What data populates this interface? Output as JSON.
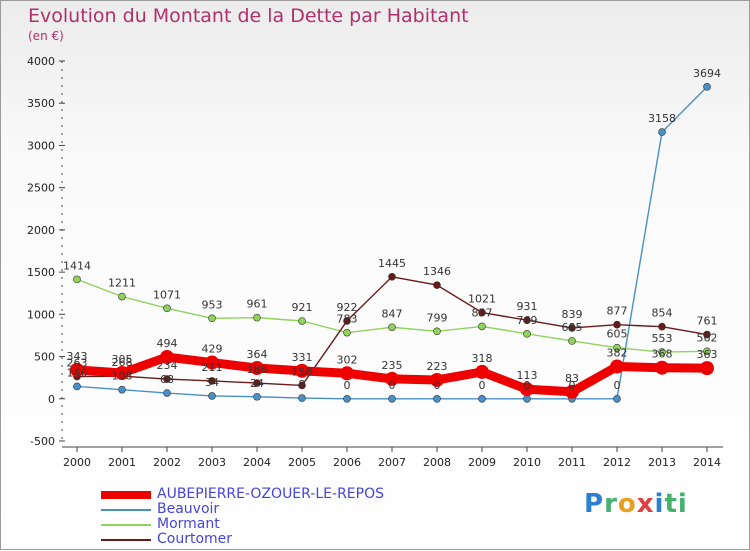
{
  "title": "Evolution du Montant de la Dette par Habitant",
  "subtitle": "(en €)",
  "logo": {
    "letters": [
      "P",
      "r",
      "o",
      "x",
      "i",
      "ti"
    ]
  },
  "colors": {
    "AUBEPIERRE-OZOUER-LE-REPOS": "#ee0000",
    "Beauvoir": "#4a90c8",
    "Mormant": "#8fd35a",
    "Courtomer": "#6b1a1a"
  },
  "chart_data": {
    "type": "line",
    "title": "Evolution du Montant de la Dette par Habitant",
    "ylabel": "(en €)",
    "xlabel": "",
    "categories": [
      "2000",
      "2001",
      "2002",
      "2003",
      "2004",
      "2005",
      "2006",
      "2007",
      "2008",
      "2009",
      "2010",
      "2011",
      "2012",
      "2013",
      "2014"
    ],
    "ylim": [
      -500,
      4000
    ],
    "yticks": [
      "-500",
      "0",
      "500",
      "1000",
      "1500",
      "2000",
      "2500",
      "3000",
      "3500",
      "4000"
    ],
    "grid": false,
    "legend": "bottom-left",
    "series": [
      {
        "name": "AUBEPIERRE-OZOUER-LE-REPOS",
        "values": [
          343,
          305,
          494,
          429,
          364,
          331,
          302,
          235,
          223,
          318,
          113,
          83,
          382,
          368,
          363
        ],
        "labels": [
          "343",
          "305",
          "494",
          "429",
          "364",
          "331",
          "302",
          "235",
          "223",
          "318",
          "113",
          "83",
          "382",
          "368",
          "363"
        ]
      },
      {
        "name": "Beauvoir",
        "values": [
          146,
          108,
          68,
          34,
          24,
          8,
          0,
          0,
          0,
          0,
          0,
          0,
          0,
          3158,
          3694
        ],
        "labels": [
          "146",
          "108",
          "68",
          "34",
          "24",
          "8",
          "0",
          "0",
          "0",
          "0",
          "0",
          "0",
          "0",
          "3158",
          "3694"
        ]
      },
      {
        "name": "Mormant",
        "values": [
          1414,
          1211,
          1071,
          953,
          961,
          921,
          783,
          847,
          799,
          857,
          769,
          685,
          605,
          553,
          562
        ],
        "labels": [
          "1414",
          "1211",
          "1071",
          "953",
          "961",
          "921",
          "783",
          "847",
          "799",
          "857",
          "769",
          "685",
          "605",
          "553",
          "562"
        ]
      },
      {
        "name": "Courtomer",
        "values": [
          263,
          268,
          234,
          211,
          186,
          158,
          922,
          1445,
          1346,
          1021,
          931,
          839,
          877,
          854,
          761
        ],
        "labels": [
          "263",
          "268",
          "234",
          "211",
          "186",
          "158",
          "922",
          "1445",
          "1346",
          "1021",
          "931",
          "839",
          "877",
          "854",
          "761"
        ]
      }
    ]
  }
}
